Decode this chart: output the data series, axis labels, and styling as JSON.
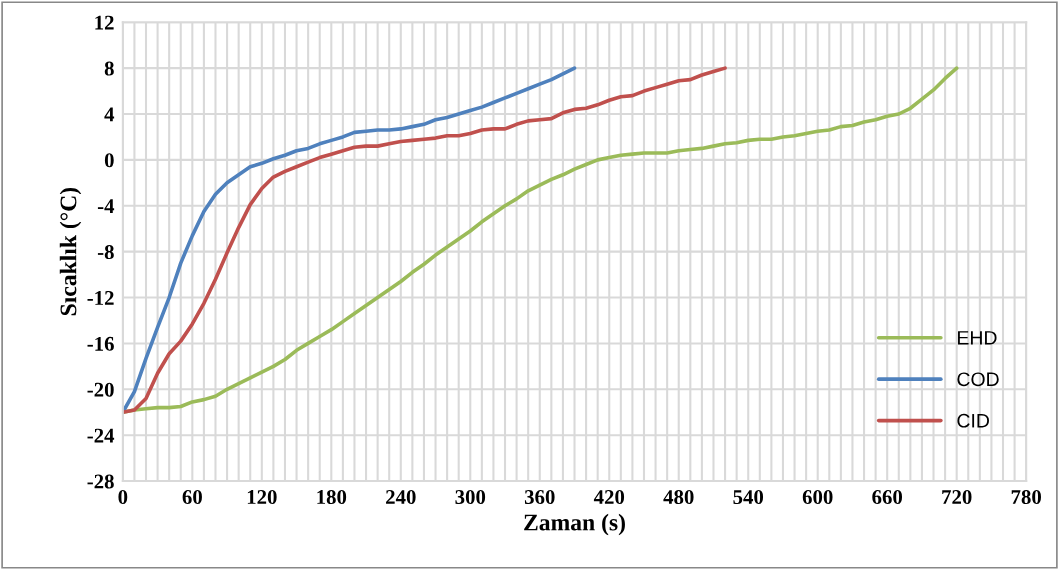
{
  "chart_data": {
    "type": "line",
    "xlabel": "Zaman (s)",
    "ylabel": "Sıcaklık (°C)",
    "xlim": [
      0,
      780
    ],
    "ylim": [
      -28,
      12
    ],
    "xticks": [
      0,
      {
        "value": 10,
        "label": null
      },
      {
        "value": 20,
        "label": null
      },
      {
        "value": 30,
        "label": null
      },
      {
        "value": 40,
        "label": null
      },
      {
        "value": 50,
        "label": null
      },
      60,
      {
        "value": 70,
        "label": null
      },
      {
        "value": 80,
        "label": null
      },
      {
        "value": 90,
        "label": null
      },
      {
        "value": 100,
        "label": null
      },
      {
        "value": 110,
        "label": null
      },
      120,
      {
        "value": 130,
        "label": null
      },
      {
        "value": 140,
        "label": null
      },
      {
        "value": 150,
        "label": null
      },
      {
        "value": 160,
        "label": null
      },
      {
        "value": 170,
        "label": null
      },
      180,
      {
        "value": 190,
        "label": null
      },
      {
        "value": 200,
        "label": null
      },
      {
        "value": 210,
        "label": null
      },
      {
        "value": 220,
        "label": null
      },
      {
        "value": 230,
        "label": null
      },
      240,
      {
        "value": 250,
        "label": null
      },
      {
        "value": 260,
        "label": null
      },
      {
        "value": 270,
        "label": null
      },
      {
        "value": 280,
        "label": null
      },
      {
        "value": 290,
        "label": null
      },
      300,
      {
        "value": 310,
        "label": null
      },
      {
        "value": 320,
        "label": null
      },
      {
        "value": 330,
        "label": null
      },
      {
        "value": 340,
        "label": null
      },
      {
        "value": 350,
        "label": null
      },
      360,
      {
        "value": 370,
        "label": null
      },
      {
        "value": 380,
        "label": null
      },
      {
        "value": 390,
        "label": null
      },
      {
        "value": 400,
        "label": null
      },
      {
        "value": 410,
        "label": null
      },
      420,
      {
        "value": 430,
        "label": null
      },
      {
        "value": 440,
        "label": null
      },
      {
        "value": 450,
        "label": null
      },
      {
        "value": 460,
        "label": null
      },
      {
        "value": 470,
        "label": null
      },
      480,
      {
        "value": 490,
        "label": null
      },
      {
        "value": 500,
        "label": null
      },
      {
        "value": 510,
        "label": null
      },
      {
        "value": 520,
        "label": null
      },
      {
        "value": 530,
        "label": null
      },
      540,
      {
        "value": 550,
        "label": null
      },
      {
        "value": 560,
        "label": null
      },
      {
        "value": 570,
        "label": null
      },
      {
        "value": 580,
        "label": null
      },
      {
        "value": 590,
        "label": null
      },
      600,
      {
        "value": 610,
        "label": null
      },
      {
        "value": 620,
        "label": null
      },
      {
        "value": 630,
        "label": null
      },
      {
        "value": 640,
        "label": null
      },
      {
        "value": 650,
        "label": null
      },
      660,
      {
        "value": 670,
        "label": null
      },
      {
        "value": 680,
        "label": null
      },
      {
        "value": 690,
        "label": null
      },
      {
        "value": 700,
        "label": null
      },
      {
        "value": 710,
        "label": null
      },
      720,
      {
        "value": 730,
        "label": null
      },
      {
        "value": 740,
        "label": null
      },
      {
        "value": 750,
        "label": null
      },
      {
        "value": 760,
        "label": null
      },
      {
        "value": 770,
        "label": null
      },
      780
    ],
    "yticks": [
      -28,
      -24,
      -20,
      -16,
      -12,
      -8,
      -4,
      0,
      4,
      8,
      12
    ],
    "grid": true,
    "legend": "bottom right",
    "marker": "none",
    "line_style": "solid",
    "series": [
      {
        "name": "EHD",
        "color": "#9bbb59",
        "x": [
          0,
          10,
          20,
          30,
          40,
          50,
          60,
          70,
          80,
          90,
          100,
          110,
          120,
          130,
          140,
          150,
          160,
          170,
          180,
          190,
          200,
          210,
          220,
          230,
          240,
          250,
          260,
          270,
          280,
          290,
          300,
          310,
          320,
          330,
          340,
          350,
          360,
          370,
          380,
          390,
          400,
          410,
          420,
          430,
          440,
          450,
          460,
          470,
          480,
          490,
          500,
          510,
          520,
          530,
          540,
          550,
          560,
          570,
          580,
          590,
          600,
          610,
          620,
          630,
          640,
          650,
          660,
          670,
          680,
          690,
          700,
          710,
          720
        ],
        "values": [
          -22,
          -21.8,
          -21.7,
          -21.6,
          -21.6,
          -21.5,
          -21.1,
          -20.9,
          -20.6,
          -20,
          -19.5,
          -19,
          -18.5,
          -18,
          -17.4,
          -16.6,
          -16,
          -15.4,
          -14.8,
          -14.1,
          -13.4,
          -12.7,
          -12,
          -11.3,
          -10.6,
          -9.8,
          -9.1,
          -8.3,
          -7.6,
          -6.9,
          -6.2,
          -5.4,
          -4.7,
          -4,
          -3.4,
          -2.7,
          -2.2,
          -1.7,
          -1.3,
          -0.8,
          -0.4,
          0,
          0.2,
          0.4,
          0.5,
          0.6,
          0.6,
          0.6,
          0.8,
          0.9,
          1.0,
          1.2,
          1.4,
          1.5,
          1.7,
          1.8,
          1.8,
          2,
          2.1,
          2.3,
          2.5,
          2.6,
          2.9,
          3,
          3.3,
          3.5,
          3.8,
          4,
          4.5,
          5.3,
          6.1,
          7.1,
          8
        ]
      },
      {
        "name": "COD",
        "color": "#4f81bd",
        "x": [
          0,
          10,
          20,
          30,
          40,
          50,
          60,
          70,
          80,
          90,
          100,
          110,
          120,
          130,
          140,
          150,
          160,
          170,
          180,
          190,
          200,
          210,
          220,
          230,
          240,
          250,
          260,
          270,
          280,
          290,
          300,
          310,
          320,
          330,
          340,
          350,
          360,
          370,
          380,
          390
        ],
        "values": [
          -22,
          -20.2,
          -17.3,
          -14.6,
          -12,
          -9,
          -6.6,
          -4.5,
          -3,
          -2,
          -1.3,
          -0.6,
          -0.3,
          0.1,
          0.4,
          0.8,
          1,
          1.4,
          1.7,
          2,
          2.4,
          2.5,
          2.6,
          2.6,
          2.7,
          2.9,
          3.1,
          3.5,
          3.7,
          4,
          4.3,
          4.6,
          5,
          5.4,
          5.8,
          6.2,
          6.6,
          7,
          7.5,
          8
        ]
      },
      {
        "name": "CID",
        "color": "#c0504d",
        "x": [
          0,
          10,
          20,
          30,
          40,
          50,
          60,
          70,
          80,
          90,
          100,
          110,
          120,
          130,
          140,
          150,
          160,
          170,
          180,
          190,
          200,
          210,
          220,
          230,
          240,
          250,
          260,
          270,
          280,
          290,
          300,
          310,
          320,
          330,
          340,
          350,
          360,
          370,
          380,
          390,
          400,
          410,
          420,
          430,
          440,
          450,
          460,
          470,
          480,
          490,
          500,
          510,
          520
        ],
        "values": [
          -22,
          -21.8,
          -20.8,
          -18.6,
          -16.9,
          -15.8,
          -14.3,
          -12.5,
          -10.4,
          -8.1,
          -5.9,
          -3.9,
          -2.5,
          -1.5,
          -1,
          -0.6,
          -0.2,
          0.2,
          0.5,
          0.8,
          1.1,
          1.2,
          1.2,
          1.4,
          1.6,
          1.7,
          1.8,
          1.9,
          2.1,
          2.1,
          2.3,
          2.6,
          2.7,
          2.7,
          3.1,
          3.4,
          3.5,
          3.6,
          4.1,
          4.4,
          4.5,
          4.8,
          5.2,
          5.5,
          5.6,
          6,
          6.3,
          6.6,
          6.9,
          7,
          7.4,
          7.7,
          8
        ]
      }
    ]
  }
}
